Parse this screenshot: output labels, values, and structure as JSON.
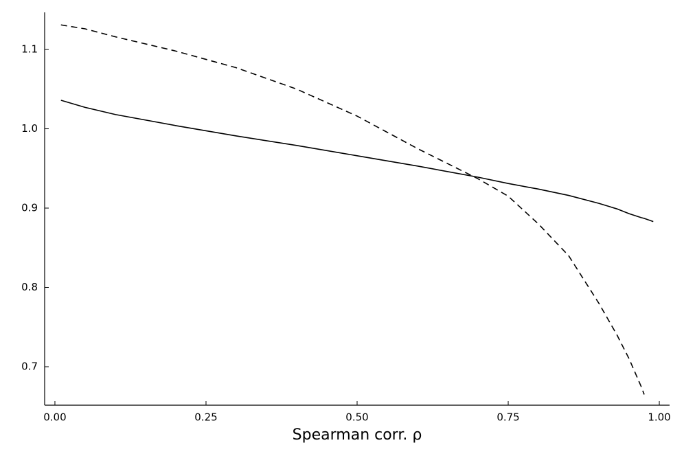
{
  "chart_data": {
    "type": "line",
    "x_label": "Spearman corr. ρ",
    "x": [
      0.01,
      0.05,
      0.1,
      0.2,
      0.3,
      0.4,
      0.5,
      0.6,
      0.7,
      0.75,
      0.8,
      0.85,
      0.9,
      0.93,
      0.95,
      0.97,
      0.975,
      0.99
    ],
    "series": [
      {
        "color": "#000000",
        "dashed": false,
        "values": [
          1.036,
          1.027,
          1.018,
          1.004,
          0.991,
          0.979,
          0.966,
          0.953,
          0.939,
          0.931,
          0.924,
          0.916,
          0.906,
          0.899,
          0.893,
          0.888,
          0.887,
          0.883
        ]
      },
      {
        "color": "#000000",
        "dashed": true,
        "values": [
          1.131,
          1.126,
          1.116,
          1.098,
          1.077,
          1.05,
          1.016,
          0.975,
          0.937,
          0.915,
          0.88,
          0.84,
          0.78,
          0.74,
          0.71,
          0.675,
          0.665,
          null
        ]
      }
    ],
    "xlim": [
      -0.017,
      1.017
    ],
    "ylim": [
      0.6515,
      1.1468
    ],
    "xticks": [
      {
        "value": 0,
        "label": "0.00"
      },
      0.25,
      {
        "value": 0.5,
        "label": "0.50"
      },
      0.75,
      {
        "value": 1,
        "label": "1.00"
      }
    ],
    "yticks": [
      0.7,
      0.8,
      0.9,
      {
        "value": 1,
        "label": "1.0"
      },
      1.1
    ],
    "grid": false
  }
}
